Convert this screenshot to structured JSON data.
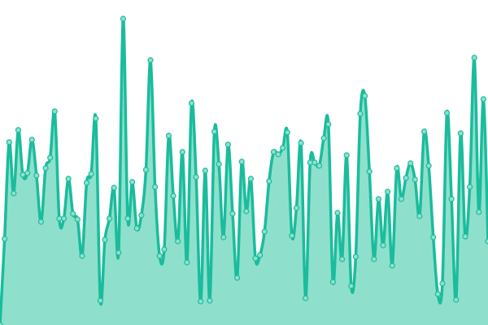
{
  "chart_data": {
    "type": "area",
    "title": "",
    "xlabel": "",
    "ylabel": "",
    "ylim": [
      0,
      100
    ],
    "grid": false,
    "legend": "none",
    "smooth": true,
    "colors": {
      "line": "#1abc9c",
      "fill": "#8ee0cc",
      "marker_fill": "#8ee0cc"
    },
    "values": [
      0,
      26.5,
      56.25,
      40.5,
      60,
      46.25,
      46.75,
      57,
      46,
      31.75,
      48.25,
      51.5,
      65.75,
      32.75,
      32.75,
      45,
      34.25,
      32.5,
      21.25,
      43.75,
      46.5,
      63.5,
      7.5,
      26.25,
      32.75,
      42.25,
      22.25,
      94.25,
      32.75,
      44,
      29.75,
      33.75,
      47.75,
      81.5,
      42.5,
      21.25,
      23.25,
      58.25,
      39.75,
      25.75,
      53.25,
      19.25,
      68.25,
      45.5,
      7.25,
      47.5,
      7.5,
      59.5,
      49.5,
      27,
      55.5,
      34.25,
      14.5,
      50.25,
      35,
      45,
      20.5,
      21.5,
      28.75,
      44.25,
      53.25,
      52.5,
      54.5,
      59.25,
      27.5,
      36,
      56,
      8.25,
      50,
      50,
      49,
      57.5,
      61.75,
      13.25,
      34.5,
      20.25,
      52.25,
      12,
      21,
      65,
      70.5,
      47.25,
      20.25,
      38.75,
      24.5,
      41,
      18.25,
      48.25,
      38.75,
      45.25,
      49.75,
      44.75,
      33.5,
      59.5,
      49,
      27,
      9.5,
      12.75,
      65.25,
      38.75,
      7.75,
      59,
      27.25,
      42.5,
      82.25,
      34.75,
      69.5,
      25.75
    ]
  }
}
